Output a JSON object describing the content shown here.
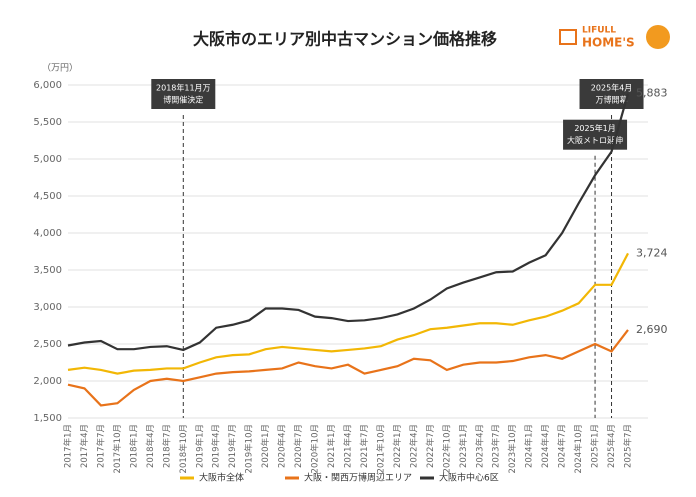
{
  "chart_data": {
    "type": "line",
    "title": "大阪市のエリア別中古マンション価格推移",
    "y_unit": "（万円）",
    "logo": [
      "LIFULL",
      "HOME'S"
    ],
    "categories": [
      "2017年1月",
      "2017年4月",
      "2017年7月",
      "2017年10月",
      "2018年1月",
      "2018年4月",
      "2018年7月",
      "2018年10月",
      "2019年1月",
      "2019年4月",
      "2019年7月",
      "2019年10月",
      "2020年1月",
      "2020年4月",
      "2020年7月",
      "2020年10月",
      "2021年1月",
      "2021年4月",
      "2021年7月",
      "2021年10月",
      "2022年1月",
      "2022年4月",
      "2022年7月",
      "2022年10月",
      "2023年1月",
      "2023年4月",
      "2023年7月",
      "2023年10月",
      "2024年1月",
      "2024年4月",
      "2024年7月",
      "2024年10月",
      "2025年1月",
      "2025年4月",
      "2025年7月"
    ],
    "series": [
      {
        "name": "大阪市全体",
        "color": "#f2b705",
        "values": [
          2150,
          2180,
          2150,
          2100,
          2140,
          2150,
          2170,
          2170,
          2250,
          2320,
          2350,
          2360,
          2430,
          2460,
          2440,
          2420,
          2400,
          2420,
          2440,
          2470,
          2560,
          2620,
          2700,
          2720,
          2750,
          2780,
          2780,
          2760,
          2820,
          2870,
          2950,
          3050,
          3300,
          3300,
          3724
        ],
        "value_labels": [
          null,
          null,
          null,
          null,
          null,
          null,
          null,
          null,
          null,
          null,
          null,
          null,
          null,
          null,
          null,
          null,
          null,
          null,
          null,
          null,
          null,
          null,
          null,
          null,
          null,
          null,
          null,
          null,
          null,
          null,
          null,
          null,
          null,
          null,
          "3,724"
        ]
      },
      {
        "name": "大阪・関西万博周辺エリア",
        "color": "#e8731a",
        "values": [
          1950,
          1900,
          1670,
          1700,
          1880,
          2000,
          2030,
          2000,
          2050,
          2100,
          2120,
          2130,
          2150,
          2170,
          2250,
          2200,
          2170,
          2220,
          2100,
          2150,
          2200,
          2300,
          2280,
          2150,
          2220,
          2250,
          2250,
          2270,
          2320,
          2350,
          2300,
          2400,
          2500,
          2400,
          2690
        ],
        "value_labels": [
          null,
          null,
          null,
          null,
          null,
          null,
          null,
          null,
          null,
          null,
          null,
          null,
          null,
          null,
          null,
          null,
          null,
          null,
          null,
          null,
          null,
          null,
          null,
          null,
          null,
          null,
          null,
          null,
          null,
          null,
          null,
          null,
          null,
          null,
          "2,690"
        ]
      },
      {
        "name": "大阪市中心6区",
        "color": "#333333",
        "values": [
          2480,
          2520,
          2540,
          2430,
          2430,
          2460,
          2470,
          2420,
          2520,
          2720,
          2760,
          2820,
          2980,
          2980,
          2960,
          2870,
          2850,
          2810,
          2820,
          2850,
          2900,
          2980,
          3100,
          3250,
          3330,
          3400,
          3470,
          3480,
          3600,
          3700,
          4000,
          4400,
          4780,
          5100,
          5883
        ],
        "value_labels": [
          null,
          null,
          null,
          null,
          null,
          null,
          null,
          null,
          null,
          null,
          null,
          null,
          null,
          null,
          null,
          null,
          null,
          null,
          null,
          null,
          null,
          null,
          null,
          null,
          null,
          null,
          null,
          null,
          null,
          null,
          null,
          null,
          null,
          null,
          "5,883"
        ]
      }
    ],
    "ylim": [
      1500,
      6000
    ],
    "yticks": [
      {
        "value": 1500,
        "label": "1,500"
      },
      {
        "value": 2000,
        "label": "2,000"
      },
      {
        "value": 2500,
        "label": "2,500"
      },
      {
        "value": 3000,
        "label": "3,000"
      },
      {
        "value": 3500,
        "label": "3,500"
      },
      {
        "value": 4000,
        "label": "4,000"
      },
      {
        "value": 4500,
        "label": "4,500"
      },
      {
        "value": 5000,
        "label": "5,000"
      },
      {
        "value": 5500,
        "label": "5,500"
      },
      {
        "value": 6000,
        "label": "6,000"
      }
    ],
    "grid": true,
    "annotations": [
      {
        "x": "2018年10月",
        "lines": [
          "2018年11月万",
          "博開催決定"
        ],
        "box_at": 6000
      },
      {
        "x": "2025年1月",
        "lines": [
          "2025年1月",
          "大阪メトロ延伸"
        ],
        "box_at": 5450
      },
      {
        "x": "2025年4月",
        "lines": [
          "2025年4月",
          "万博開幕"
        ],
        "box_at": 6000
      }
    ],
    "legend": "bottom"
  }
}
